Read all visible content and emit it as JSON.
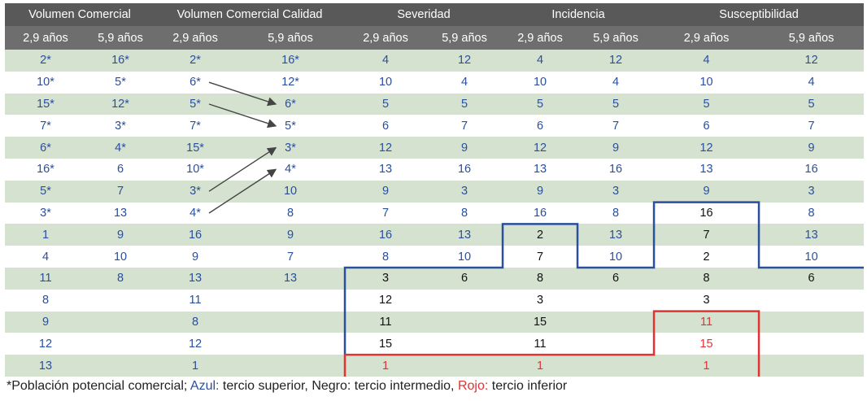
{
  "colors": {
    "header_bg": "#595959",
    "subheader_bg": "#6e6e6e",
    "green_row": "#d5e2cf",
    "white_row": "#ffffff",
    "blue": "#2a4f9c",
    "black": "#111111",
    "red": "#e03333",
    "blue_line": "#2a4f9c",
    "red_line": "#e03333",
    "arrow": "#444444"
  },
  "table": {
    "groups": [
      "Volumen Comercial",
      "Volumen Comercial Calidad",
      "Severidad",
      "Incidencia",
      "Susceptibilidad"
    ],
    "subheaders": [
      "2,9 años",
      "5,9 años",
      "2,9 años",
      "5,9 años",
      "2,9 años",
      "5,9 años",
      "2,9 años",
      "5,9 años",
      "2,9 años",
      "5,9 años"
    ],
    "rows": [
      [
        [
          "2*",
          "blue"
        ],
        [
          "16*",
          "blue"
        ],
        [
          "2*",
          "blue"
        ],
        [
          "16*",
          "blue"
        ],
        [
          "4",
          "blue"
        ],
        [
          "12",
          "blue"
        ],
        [
          "4",
          "blue"
        ],
        [
          "12",
          "blue"
        ],
        [
          "4",
          "blue"
        ],
        [
          "12",
          "blue"
        ]
      ],
      [
        [
          "10*",
          "blue"
        ],
        [
          "5*",
          "blue"
        ],
        [
          "6*",
          "blue"
        ],
        [
          "12*",
          "blue"
        ],
        [
          "10",
          "blue"
        ],
        [
          "4",
          "blue"
        ],
        [
          "10",
          "blue"
        ],
        [
          "4",
          "blue"
        ],
        [
          "10",
          "blue"
        ],
        [
          "4",
          "blue"
        ]
      ],
      [
        [
          "15*",
          "blue"
        ],
        [
          "12*",
          "blue"
        ],
        [
          "5*",
          "blue"
        ],
        [
          "6*",
          "blue"
        ],
        [
          "5",
          "blue"
        ],
        [
          "5",
          "blue"
        ],
        [
          "5",
          "blue"
        ],
        [
          "5",
          "blue"
        ],
        [
          "5",
          "blue"
        ],
        [
          "5",
          "blue"
        ]
      ],
      [
        [
          "7*",
          "blue"
        ],
        [
          "3*",
          "blue"
        ],
        [
          "7*",
          "blue"
        ],
        [
          "5*",
          "blue"
        ],
        [
          "6",
          "blue"
        ],
        [
          "7",
          "blue"
        ],
        [
          "6",
          "blue"
        ],
        [
          "7",
          "blue"
        ],
        [
          "6",
          "blue"
        ],
        [
          "7",
          "blue"
        ]
      ],
      [
        [
          "6*",
          "blue"
        ],
        [
          "4*",
          "blue"
        ],
        [
          "15*",
          "blue"
        ],
        [
          "3*",
          "blue"
        ],
        [
          "12",
          "blue"
        ],
        [
          "9",
          "blue"
        ],
        [
          "12",
          "blue"
        ],
        [
          "9",
          "blue"
        ],
        [
          "12",
          "blue"
        ],
        [
          "9",
          "blue"
        ]
      ],
      [
        [
          "16*",
          "blue"
        ],
        [
          "6",
          "blue"
        ],
        [
          "10*",
          "blue"
        ],
        [
          "4*",
          "blue"
        ],
        [
          "13",
          "blue"
        ],
        [
          "16",
          "blue"
        ],
        [
          "13",
          "blue"
        ],
        [
          "16",
          "blue"
        ],
        [
          "13",
          "blue"
        ],
        [
          "16",
          "blue"
        ]
      ],
      [
        [
          "5*",
          "blue"
        ],
        [
          "7",
          "blue"
        ],
        [
          "3*",
          "blue"
        ],
        [
          "10",
          "blue"
        ],
        [
          "9",
          "blue"
        ],
        [
          "3",
          "blue"
        ],
        [
          "9",
          "blue"
        ],
        [
          "3",
          "blue"
        ],
        [
          "9",
          "blue"
        ],
        [
          "3",
          "blue"
        ]
      ],
      [
        [
          "3*",
          "blue"
        ],
        [
          "13",
          "blue"
        ],
        [
          "4*",
          "blue"
        ],
        [
          "8",
          "blue"
        ],
        [
          "7",
          "blue"
        ],
        [
          "8",
          "blue"
        ],
        [
          "16",
          "blue"
        ],
        [
          "8",
          "blue"
        ],
        [
          "16",
          "black"
        ],
        [
          "8",
          "blue"
        ]
      ],
      [
        [
          "1",
          "blue"
        ],
        [
          "9",
          "blue"
        ],
        [
          "16",
          "blue"
        ],
        [
          "9",
          "blue"
        ],
        [
          "16",
          "blue"
        ],
        [
          "13",
          "blue"
        ],
        [
          "2",
          "black"
        ],
        [
          "13",
          "blue"
        ],
        [
          "7",
          "black"
        ],
        [
          "13",
          "blue"
        ]
      ],
      [
        [
          "4",
          "blue"
        ],
        [
          "10",
          "blue"
        ],
        [
          "9",
          "blue"
        ],
        [
          "7",
          "blue"
        ],
        [
          "8",
          "blue"
        ],
        [
          "10",
          "blue"
        ],
        [
          "7",
          "black"
        ],
        [
          "10",
          "blue"
        ],
        [
          "2",
          "black"
        ],
        [
          "10",
          "blue"
        ]
      ],
      [
        [
          "11",
          "blue"
        ],
        [
          "8",
          "blue"
        ],
        [
          "13",
          "blue"
        ],
        [
          "13",
          "blue"
        ],
        [
          "3",
          "black"
        ],
        [
          "6",
          "black"
        ],
        [
          "8",
          "black"
        ],
        [
          "6",
          "black"
        ],
        [
          "8",
          "black"
        ],
        [
          "6",
          "black"
        ]
      ],
      [
        [
          "8",
          "blue"
        ],
        [
          "",
          ""
        ],
        [
          "11",
          "blue"
        ],
        [
          "",
          ""
        ],
        [
          "12",
          "black"
        ],
        [
          "",
          ""
        ],
        [
          "3",
          "black"
        ],
        [
          "",
          ""
        ],
        [
          "3",
          "black"
        ],
        [
          "",
          ""
        ]
      ],
      [
        [
          "9",
          "blue"
        ],
        [
          "",
          ""
        ],
        [
          "8",
          "blue"
        ],
        [
          "",
          ""
        ],
        [
          "11",
          "black"
        ],
        [
          "",
          ""
        ],
        [
          "15",
          "black"
        ],
        [
          "",
          ""
        ],
        [
          "11",
          "red"
        ],
        [
          "",
          ""
        ]
      ],
      [
        [
          "12",
          "blue"
        ],
        [
          "",
          ""
        ],
        [
          "12",
          "blue"
        ],
        [
          "",
          ""
        ],
        [
          "15",
          "black"
        ],
        [
          "",
          ""
        ],
        [
          "11",
          "black"
        ],
        [
          "",
          ""
        ],
        [
          "15",
          "red"
        ],
        [
          "",
          ""
        ]
      ],
      [
        [
          "13",
          "blue"
        ],
        [
          "",
          ""
        ],
        [
          "1",
          "blue"
        ],
        [
          "",
          ""
        ],
        [
          "1",
          "red"
        ],
        [
          "",
          ""
        ],
        [
          "1",
          "red"
        ],
        [
          "",
          ""
        ],
        [
          "1",
          "red"
        ],
        [
          "",
          ""
        ]
      ]
    ]
  },
  "footnote": {
    "part1": "*Población potencial comercial; ",
    "azul": "Azul:",
    "part2": " tercio superior, Negro: tercio intermedio, ",
    "rojo": "Rojo:",
    "part3": " tercio inferior"
  }
}
